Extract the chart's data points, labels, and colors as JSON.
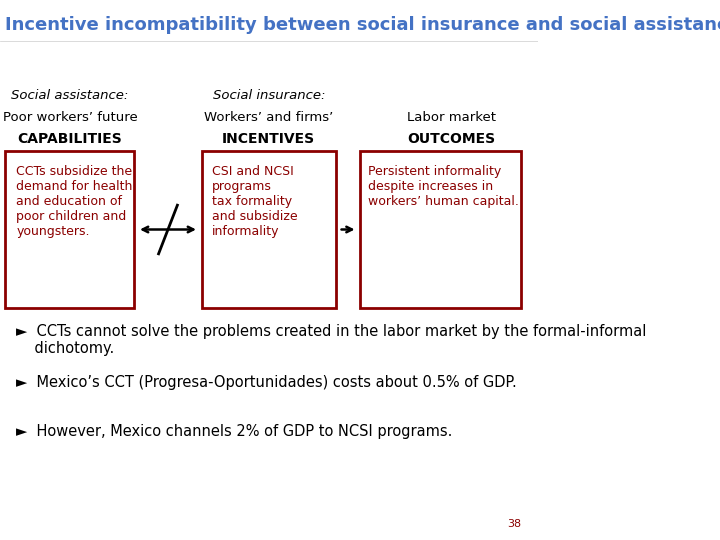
{
  "title": "Incentive incompatibility between social insurance and social assistance",
  "title_color": "#4472C4",
  "title_fontsize": 13,
  "bg_color": "#FFFFFF",
  "col1_header1": "Social assistance:",
  "col1_header2": "Poor workers’ future",
  "col1_header3": "CAPABILITIES",
  "col2_header1": "Social insurance:",
  "col2_header2": "Workers’ and firms’",
  "col2_header3": "INCENTIVES",
  "col3_header2": "Labor market",
  "col3_header3": "OUTCOMES",
  "box1_text": "CCTs subsidize the\ndemand for health\nand education of\npoor children and\nyoungsters.",
  "box2_text": "CSI and NCSI\nprograms\ntax formality\nand subsidize\ninformality",
  "box3_text": "Persistent informality\ndespite increases in\nworkers’ human capital.",
  "box_edge_color": "#8B0000",
  "box_text_color": "#8B0000",
  "header_text_color": "#000000",
  "bullet_color": "#000000",
  "bullet_fontsize": 10.5,
  "bullets": [
    "CCTs cannot solve the problems created in the labor market by the formal-informal\n    dichotomy.",
    "Mexico’s CCT (Progresa-Oportunidades) costs about 0.5% of GDP.",
    "However, Mexico channels 2% of GDP to NCSI programs."
  ],
  "page_number": "38"
}
